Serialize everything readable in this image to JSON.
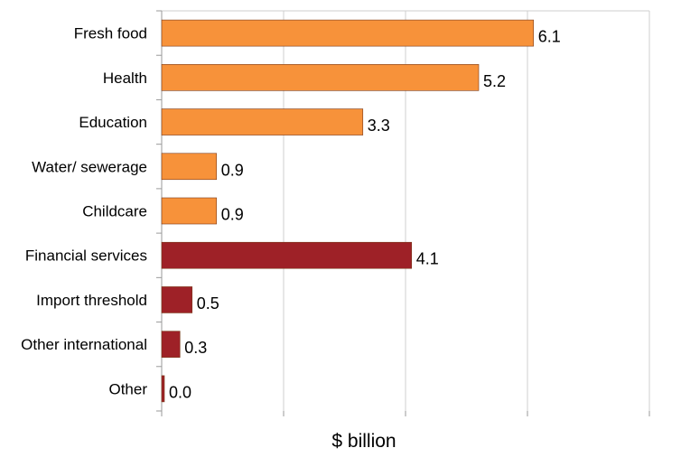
{
  "chart_data": {
    "type": "bar",
    "orientation": "horizontal",
    "categories": [
      "Fresh food",
      "Health",
      "Education",
      "Water/ sewerage",
      "Childcare",
      "Financial services",
      "Import threshold",
      "Other international",
      "Other"
    ],
    "values": [
      6.1,
      5.2,
      3.3,
      0.9,
      0.9,
      4.1,
      0.5,
      0.3,
      0.0
    ],
    "value_labels": [
      "6.1",
      "5.2",
      "3.3",
      "0.9",
      "0.9",
      "4.1",
      "0.5",
      "0.3",
      "0.0"
    ],
    "bar_colors": [
      "#F7923A",
      "#F7923A",
      "#F7923A",
      "#F7923A",
      "#F7923A",
      "#9E2127",
      "#9E2127",
      "#9E2127",
      "#9E2127"
    ],
    "xlabel": "$ billion",
    "ylabel": "",
    "title": "",
    "xlim": [
      0,
      8
    ],
    "grid": true,
    "legend": "none"
  }
}
